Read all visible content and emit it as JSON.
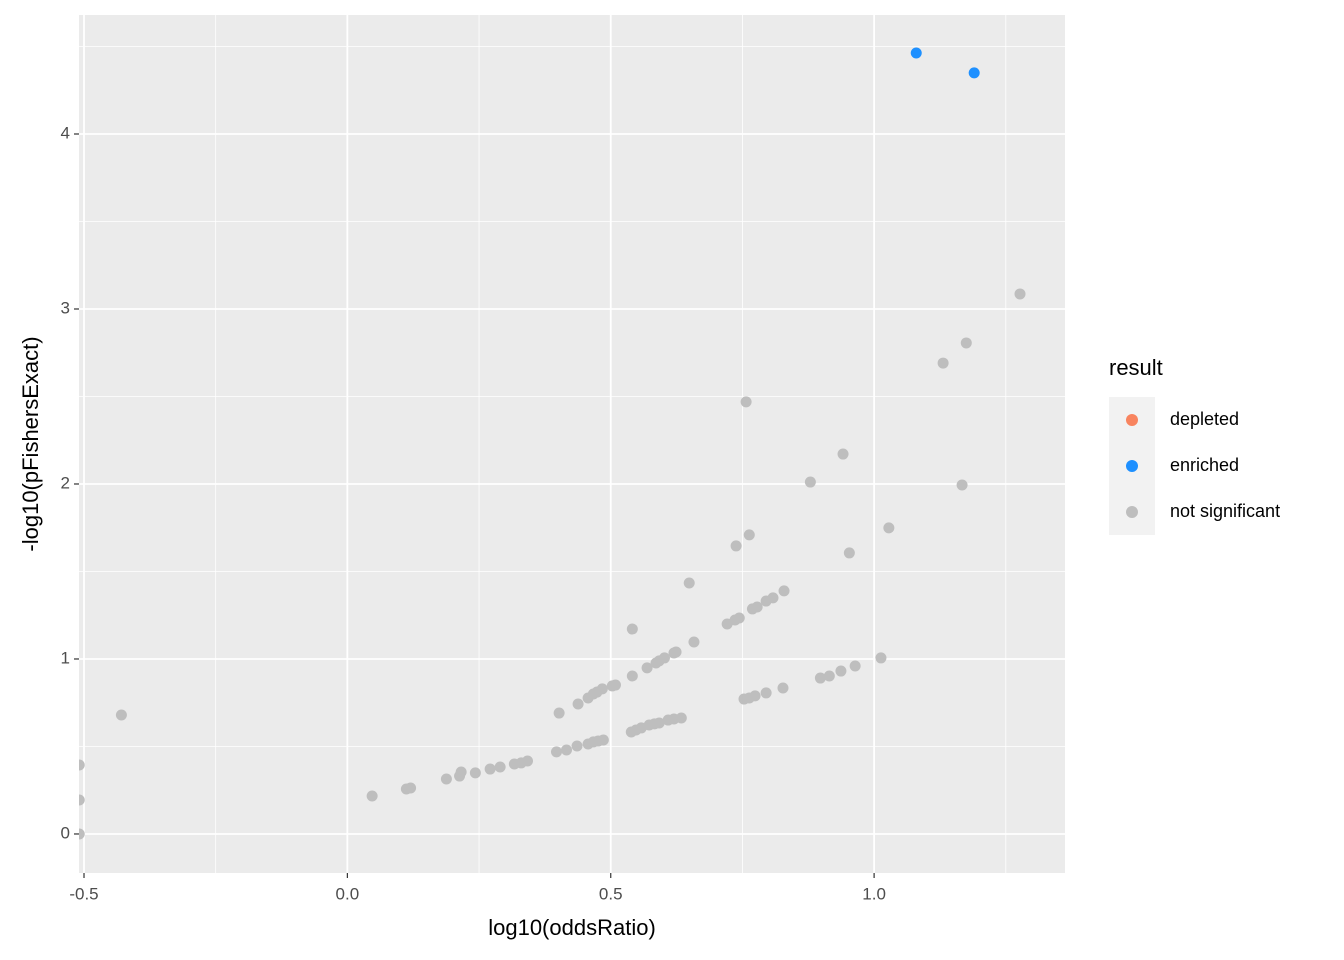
{
  "chart_data": {
    "type": "scatter",
    "xlabel": "log10(oddsRatio)",
    "ylabel": "-log10(pFishersExact)",
    "legend_title": "result",
    "xlim": [
      -0.5095,
      1.3624
    ],
    "ylim": [
      -0.223,
      4.68
    ],
    "xticks": [
      -0.5,
      {
        "value": 0,
        "label": "0.0"
      },
      0.5,
      {
        "value": 1,
        "label": "1.0"
      }
    ],
    "yticks": [
      0,
      1,
      2,
      3,
      4
    ],
    "grid": true,
    "series": [
      {
        "name": "depleted",
        "color": "#f8845f",
        "x": [],
        "values": []
      },
      {
        "name": "enriched",
        "color": "#1e90ff",
        "x": [
          1.08,
          1.19
        ],
        "values": [
          4.463,
          4.349
        ]
      },
      {
        "name": "not significant",
        "color": "#bebebe",
        "x": [
          1.277,
          1.175,
          1.131,
          0.757,
          0.941,
          0.879,
          1.167,
          1.028,
          0.738,
          0.763,
          0.953,
          0.649,
          0.541,
          0.829,
          0.808,
          0.795,
          0.778,
          0.769,
          0.744,
          0.736,
          0.721,
          0.658,
          0.624,
          0.62,
          0.602,
          0.592,
          0.586,
          0.569,
          0.541,
          0.509,
          0.503,
          0.484,
          0.474,
          0.467,
          0.457,
          0.438,
          0.402,
          1.013,
          0.964,
          0.937,
          0.915,
          0.898,
          0.827,
          0.795,
          0.774,
          0.763,
          0.753,
          0.634,
          0.62,
          0.609,
          0.592,
          0.583,
          0.573,
          0.558,
          0.548,
          0.539,
          0.486,
          0.476,
          0.467,
          0.457,
          0.436,
          0.416,
          0.397,
          0.342,
          0.33,
          0.317,
          0.29,
          0.271,
          0.243,
          0.216,
          0.213,
          0.188,
          0.12,
          0.112,
          0.047,
          -0.429,
          -0.509,
          -0.509,
          -0.509
        ],
        "values": [
          3.086,
          2.806,
          2.691,
          2.469,
          2.171,
          2.011,
          1.994,
          1.749,
          1.646,
          1.709,
          1.606,
          1.434,
          1.171,
          1.389,
          1.349,
          1.331,
          1.297,
          1.286,
          1.234,
          1.223,
          1.2,
          1.097,
          1.04,
          1.034,
          1.006,
          0.989,
          0.977,
          0.949,
          0.903,
          0.851,
          0.846,
          0.829,
          0.811,
          0.8,
          0.777,
          0.743,
          0.691,
          1.006,
          0.96,
          0.931,
          0.903,
          0.891,
          0.834,
          0.806,
          0.789,
          0.777,
          0.771,
          0.663,
          0.657,
          0.651,
          0.634,
          0.629,
          0.623,
          0.606,
          0.594,
          0.583,
          0.537,
          0.531,
          0.526,
          0.514,
          0.503,
          0.48,
          0.469,
          0.417,
          0.406,
          0.4,
          0.383,
          0.371,
          0.349,
          0.354,
          0.331,
          0.314,
          0.263,
          0.257,
          0.217,
          0.68,
          0.394,
          0.194,
          0
        ]
      }
    ]
  }
}
